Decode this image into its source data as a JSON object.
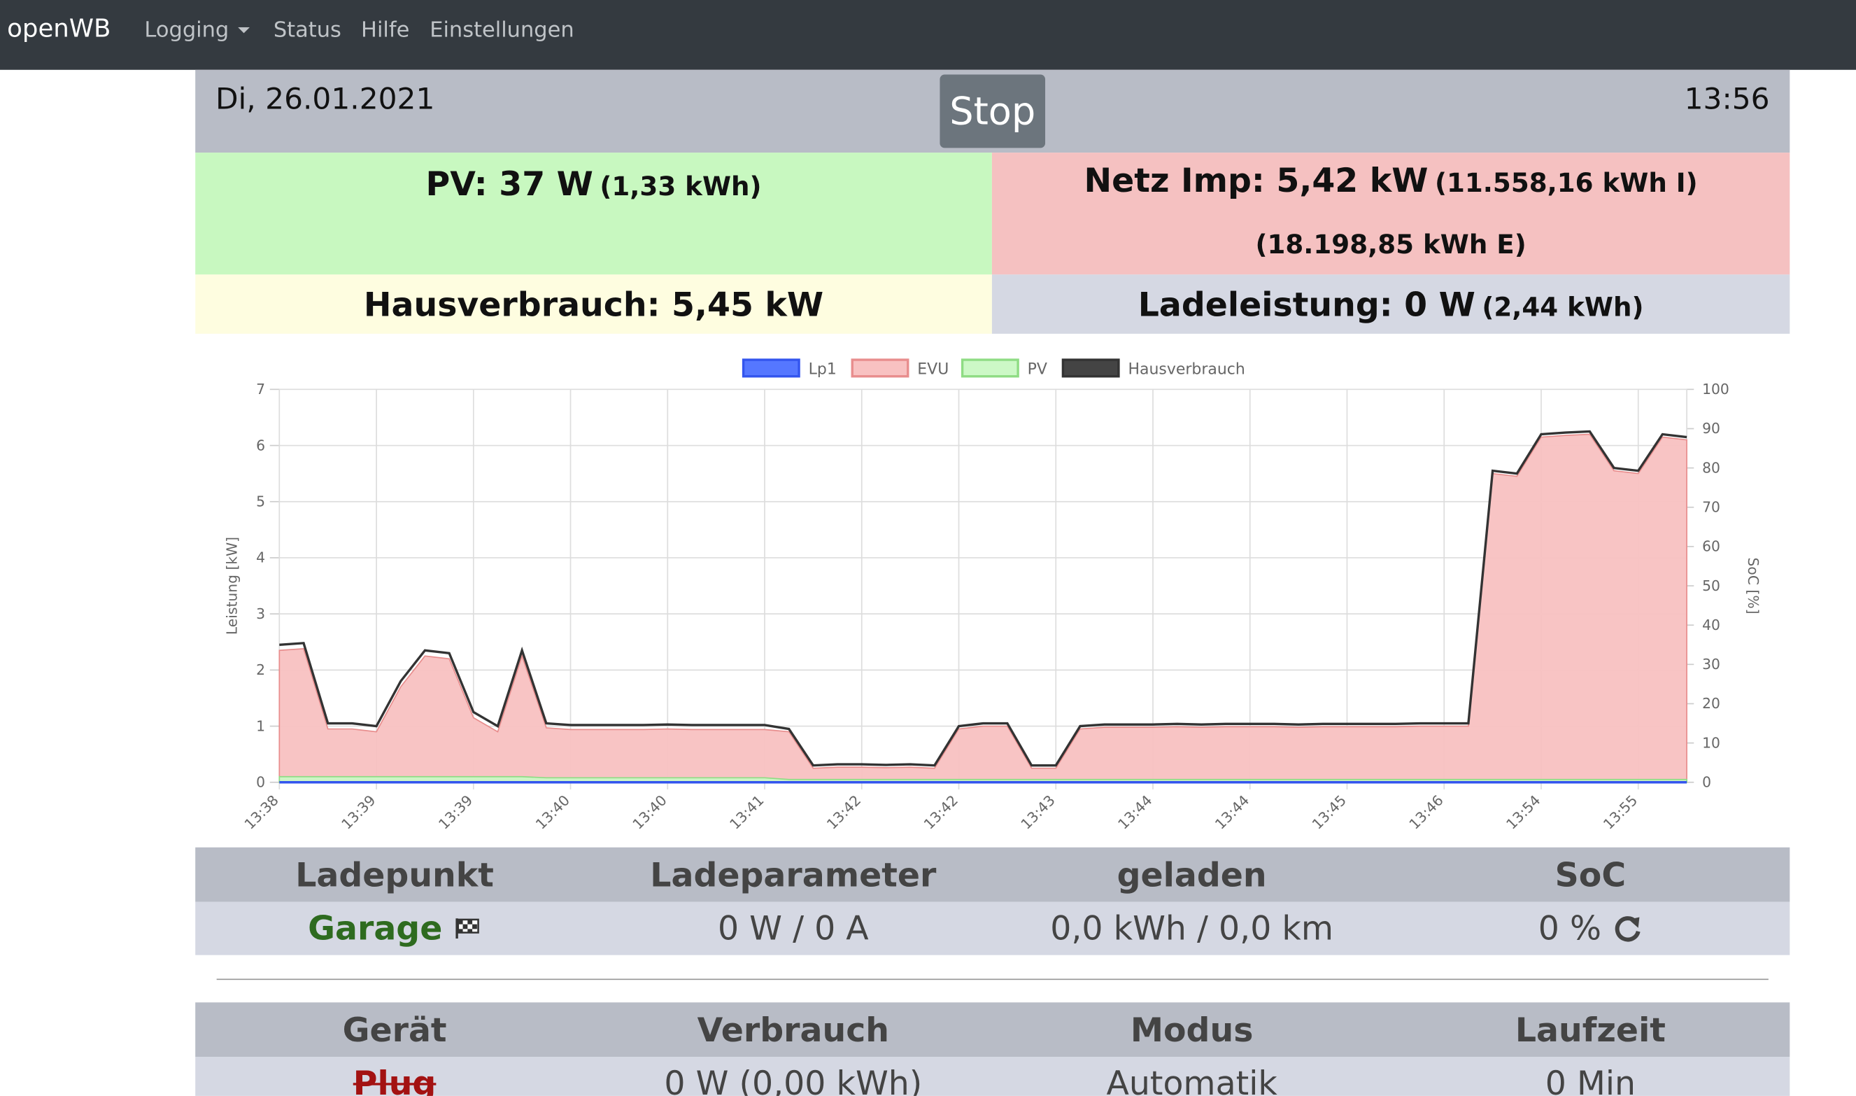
{
  "nav": {
    "brand": "openWB",
    "items": [
      "Logging",
      "Status",
      "Hilfe",
      "Einstellungen"
    ]
  },
  "header": {
    "date": "Di, 26.01.2021",
    "button": "Stop",
    "time": "13:56"
  },
  "panels": {
    "pv": {
      "main": "PV: 37 W",
      "sub": "(1,33 kWh)"
    },
    "netz": {
      "main": "Netz Imp: 5,42 kW",
      "sub": "(11.558,16 kWh I) (18.198,85 kWh E)"
    },
    "haus": {
      "main": "Hausverbrauch: 5,45 kW"
    },
    "lade": {
      "main": "Ladeleistung: 0 W",
      "sub": "(2,44 kWh)"
    }
  },
  "chart_data": {
    "type": "line",
    "ylabel": "Leistung [kW]",
    "y2label": "SoC [%]",
    "categories": [
      "13:38",
      null,
      null,
      null,
      "13:39",
      null,
      null,
      null,
      "13:39",
      null,
      null,
      null,
      "13:40",
      null,
      null,
      null,
      "13:40",
      null,
      null,
      null,
      "13:41",
      null,
      null,
      null,
      "13:42",
      null,
      null,
      null,
      "13:42",
      null,
      null,
      null,
      "13:43",
      null,
      null,
      null,
      "13:44",
      null,
      null,
      null,
      "13:44",
      null,
      null,
      null,
      "13:45",
      null,
      null,
      null,
      "13:46",
      null,
      null,
      null,
      "13:54",
      null,
      null,
      null,
      "13:55",
      null,
      null
    ],
    "ylim": [
      0,
      7
    ],
    "yticks": [
      0,
      1,
      2,
      3,
      4,
      5,
      6,
      7
    ],
    "y2lim": [
      0,
      100
    ],
    "y2ticks": [
      0,
      10,
      20,
      30,
      40,
      50,
      60,
      70,
      80,
      90,
      100
    ],
    "grid": true,
    "legend": "top",
    "series": [
      {
        "name": "Lp1",
        "color": "#3355ee",
        "fill": "#5577ff",
        "values": [
          0,
          0,
          0,
          0,
          0,
          0,
          0,
          0,
          0,
          0,
          0,
          0,
          0,
          0,
          0,
          0,
          0,
          0,
          0,
          0,
          0,
          0,
          0,
          0,
          0,
          0,
          0,
          0,
          0,
          0,
          0,
          0,
          0,
          0,
          0,
          0,
          0,
          0,
          0,
          0,
          0,
          0,
          0,
          0,
          0,
          0,
          0,
          0,
          0,
          0,
          0,
          0,
          0,
          0,
          0,
          0,
          0,
          0,
          0
        ]
      },
      {
        "name": "EVU",
        "color": "#e88d8d",
        "fill": "#f8c1c1",
        "values": [
          2.35,
          2.38,
          0.95,
          0.95,
          0.9,
          1.7,
          2.25,
          2.2,
          1.15,
          0.9,
          2.25,
          0.97,
          0.94,
          0.94,
          0.94,
          0.94,
          0.95,
          0.94,
          0.94,
          0.94,
          0.94,
          0.9,
          0.25,
          0.27,
          0.27,
          0.26,
          0.27,
          0.25,
          0.95,
          1.0,
          1.0,
          0.25,
          0.25,
          0.95,
          0.98,
          0.98,
          0.98,
          0.99,
          0.98,
          0.99,
          0.99,
          0.99,
          0.98,
          0.99,
          0.99,
          0.99,
          0.99,
          1.0,
          1.0,
          1.0,
          5.5,
          5.45,
          6.15,
          6.18,
          6.2,
          5.55,
          5.5,
          6.15,
          6.1
        ]
      },
      {
        "name": "PV",
        "color": "#8fdc84",
        "fill": "#ccf8c6",
        "values": [
          0.1,
          0.1,
          0.1,
          0.1,
          0.1,
          0.1,
          0.1,
          0.1,
          0.1,
          0.1,
          0.1,
          0.08,
          0.08,
          0.08,
          0.08,
          0.08,
          0.08,
          0.08,
          0.08,
          0.08,
          0.08,
          0.05,
          0.05,
          0.05,
          0.05,
          0.05,
          0.05,
          0.05,
          0.05,
          0.05,
          0.05,
          0.05,
          0.05,
          0.05,
          0.05,
          0.05,
          0.05,
          0.05,
          0.05,
          0.05,
          0.05,
          0.05,
          0.05,
          0.05,
          0.05,
          0.05,
          0.05,
          0.05,
          0.05,
          0.05,
          0.05,
          0.05,
          0.05,
          0.05,
          0.05,
          0.05,
          0.05,
          0.05,
          0.05
        ]
      },
      {
        "name": "Hausverbrauch",
        "color": "#333333",
        "fill": "#444444",
        "values": [
          2.45,
          2.48,
          1.05,
          1.05,
          1.0,
          1.8,
          2.35,
          2.3,
          1.25,
          1.0,
          2.35,
          1.05,
          1.02,
          1.02,
          1.02,
          1.02,
          1.03,
          1.02,
          1.02,
          1.02,
          1.02,
          0.95,
          0.3,
          0.32,
          0.32,
          0.31,
          0.32,
          0.3,
          1.0,
          1.05,
          1.05,
          0.3,
          0.3,
          1.0,
          1.03,
          1.03,
          1.03,
          1.04,
          1.03,
          1.04,
          1.04,
          1.04,
          1.03,
          1.04,
          1.04,
          1.04,
          1.04,
          1.05,
          1.05,
          1.05,
          5.55,
          5.5,
          6.2,
          6.23,
          6.25,
          5.6,
          5.55,
          6.2,
          6.15
        ]
      }
    ]
  },
  "table1": {
    "headers": [
      "Ladepunkt",
      "Ladeparameter",
      "geladen",
      "SoC"
    ],
    "row": [
      "Garage",
      "0 W / 0 A",
      "0,0 kWh / 0,0 km",
      "0 %"
    ]
  },
  "table2": {
    "headers": [
      "Gerät",
      "Verbrauch",
      "Modus",
      "Laufzeit"
    ],
    "row": [
      "Plug",
      "0 W (0,00 kWh)",
      "Automatik",
      "0 Min"
    ]
  }
}
